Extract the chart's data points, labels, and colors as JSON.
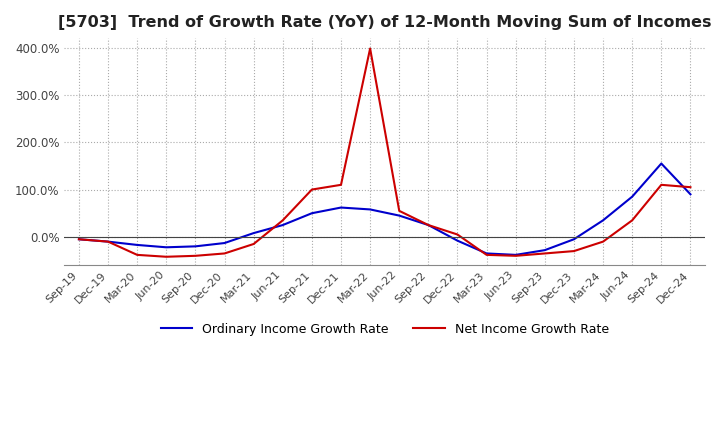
{
  "title": "[5703]  Trend of Growth Rate (YoY) of 12-Month Moving Sum of Incomes",
  "title_fontsize": 11.5,
  "ylim": [
    -60,
    420
  ],
  "yticks": [
    0.0,
    100.0,
    200.0,
    300.0,
    400.0
  ],
  "ytick_labels": [
    "0.0%",
    "100.0%",
    "200.0%",
    "300.0%",
    "400.0%"
  ],
  "background_color": "#ffffff",
  "grid_color": "#aaaaaa",
  "ordinary_color": "#0000cc",
  "net_color": "#cc0000",
  "legend_ordinary": "Ordinary Income Growth Rate",
  "legend_net": "Net Income Growth Rate",
  "x_labels": [
    "Sep-19",
    "Dec-19",
    "Mar-20",
    "Jun-20",
    "Sep-20",
    "Dec-20",
    "Mar-21",
    "Jun-21",
    "Sep-21",
    "Dec-21",
    "Mar-22",
    "Jun-22",
    "Sep-22",
    "Dec-22",
    "Mar-23",
    "Jun-23",
    "Sep-23",
    "Dec-23",
    "Mar-24",
    "Jun-24",
    "Sep-24",
    "Dec-24"
  ],
  "ordinary_income": [
    -5,
    -10,
    -17,
    -22,
    -20,
    -13,
    8,
    25,
    50,
    62,
    58,
    45,
    25,
    -8,
    -35,
    -38,
    -28,
    -5,
    35,
    85,
    155,
    90
  ],
  "net_income": [
    -5,
    -10,
    -38,
    -42,
    -40,
    -35,
    -15,
    35,
    100,
    110,
    398,
    55,
    25,
    5,
    -38,
    -40,
    -35,
    -30,
    -10,
    35,
    110,
    105
  ]
}
